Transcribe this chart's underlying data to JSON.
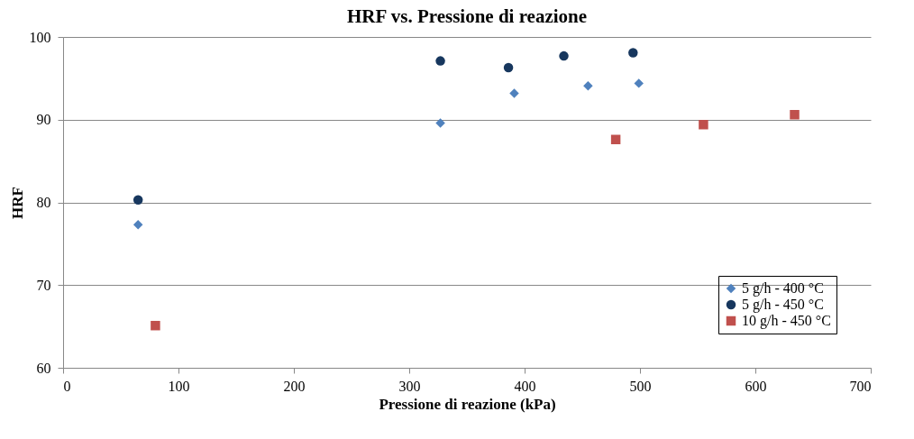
{
  "chart_data": {
    "type": "scatter",
    "title": "HRF vs. Pressione di reazione",
    "xlabel": "Pressione di reazione (kPa)",
    "ylabel": "HRF",
    "series": [
      {
        "name": "5 g/h - 400 °C",
        "color": "#4f81bd",
        "marker": "diamond",
        "x": [
          65,
          327,
          391,
          455,
          499
        ],
        "values": [
          77.3,
          89.6,
          93.2,
          94.1,
          94.4
        ]
      },
      {
        "name": "5 g/h - 450 °C",
        "color": "#17375e",
        "marker": "circle",
        "x": [
          65,
          327,
          386,
          434,
          494
        ],
        "values": [
          80.3,
          97.1,
          96.3,
          97.7,
          98.1
        ]
      },
      {
        "name": "10 g/h - 450 °C",
        "color": "#c0504d",
        "marker": "square",
        "x": [
          80,
          479,
          555,
          634
        ],
        "values": [
          65.1,
          87.6,
          89.4,
          90.6
        ]
      }
    ],
    "xlim": [
      0,
      700
    ],
    "xticks": [
      0,
      100,
      200,
      300,
      400,
      500,
      600,
      700
    ],
    "ylim": [
      60,
      100
    ],
    "yticks": [
      60,
      70,
      80,
      90,
      100
    ],
    "grid": "y",
    "legend": "bottom right"
  }
}
